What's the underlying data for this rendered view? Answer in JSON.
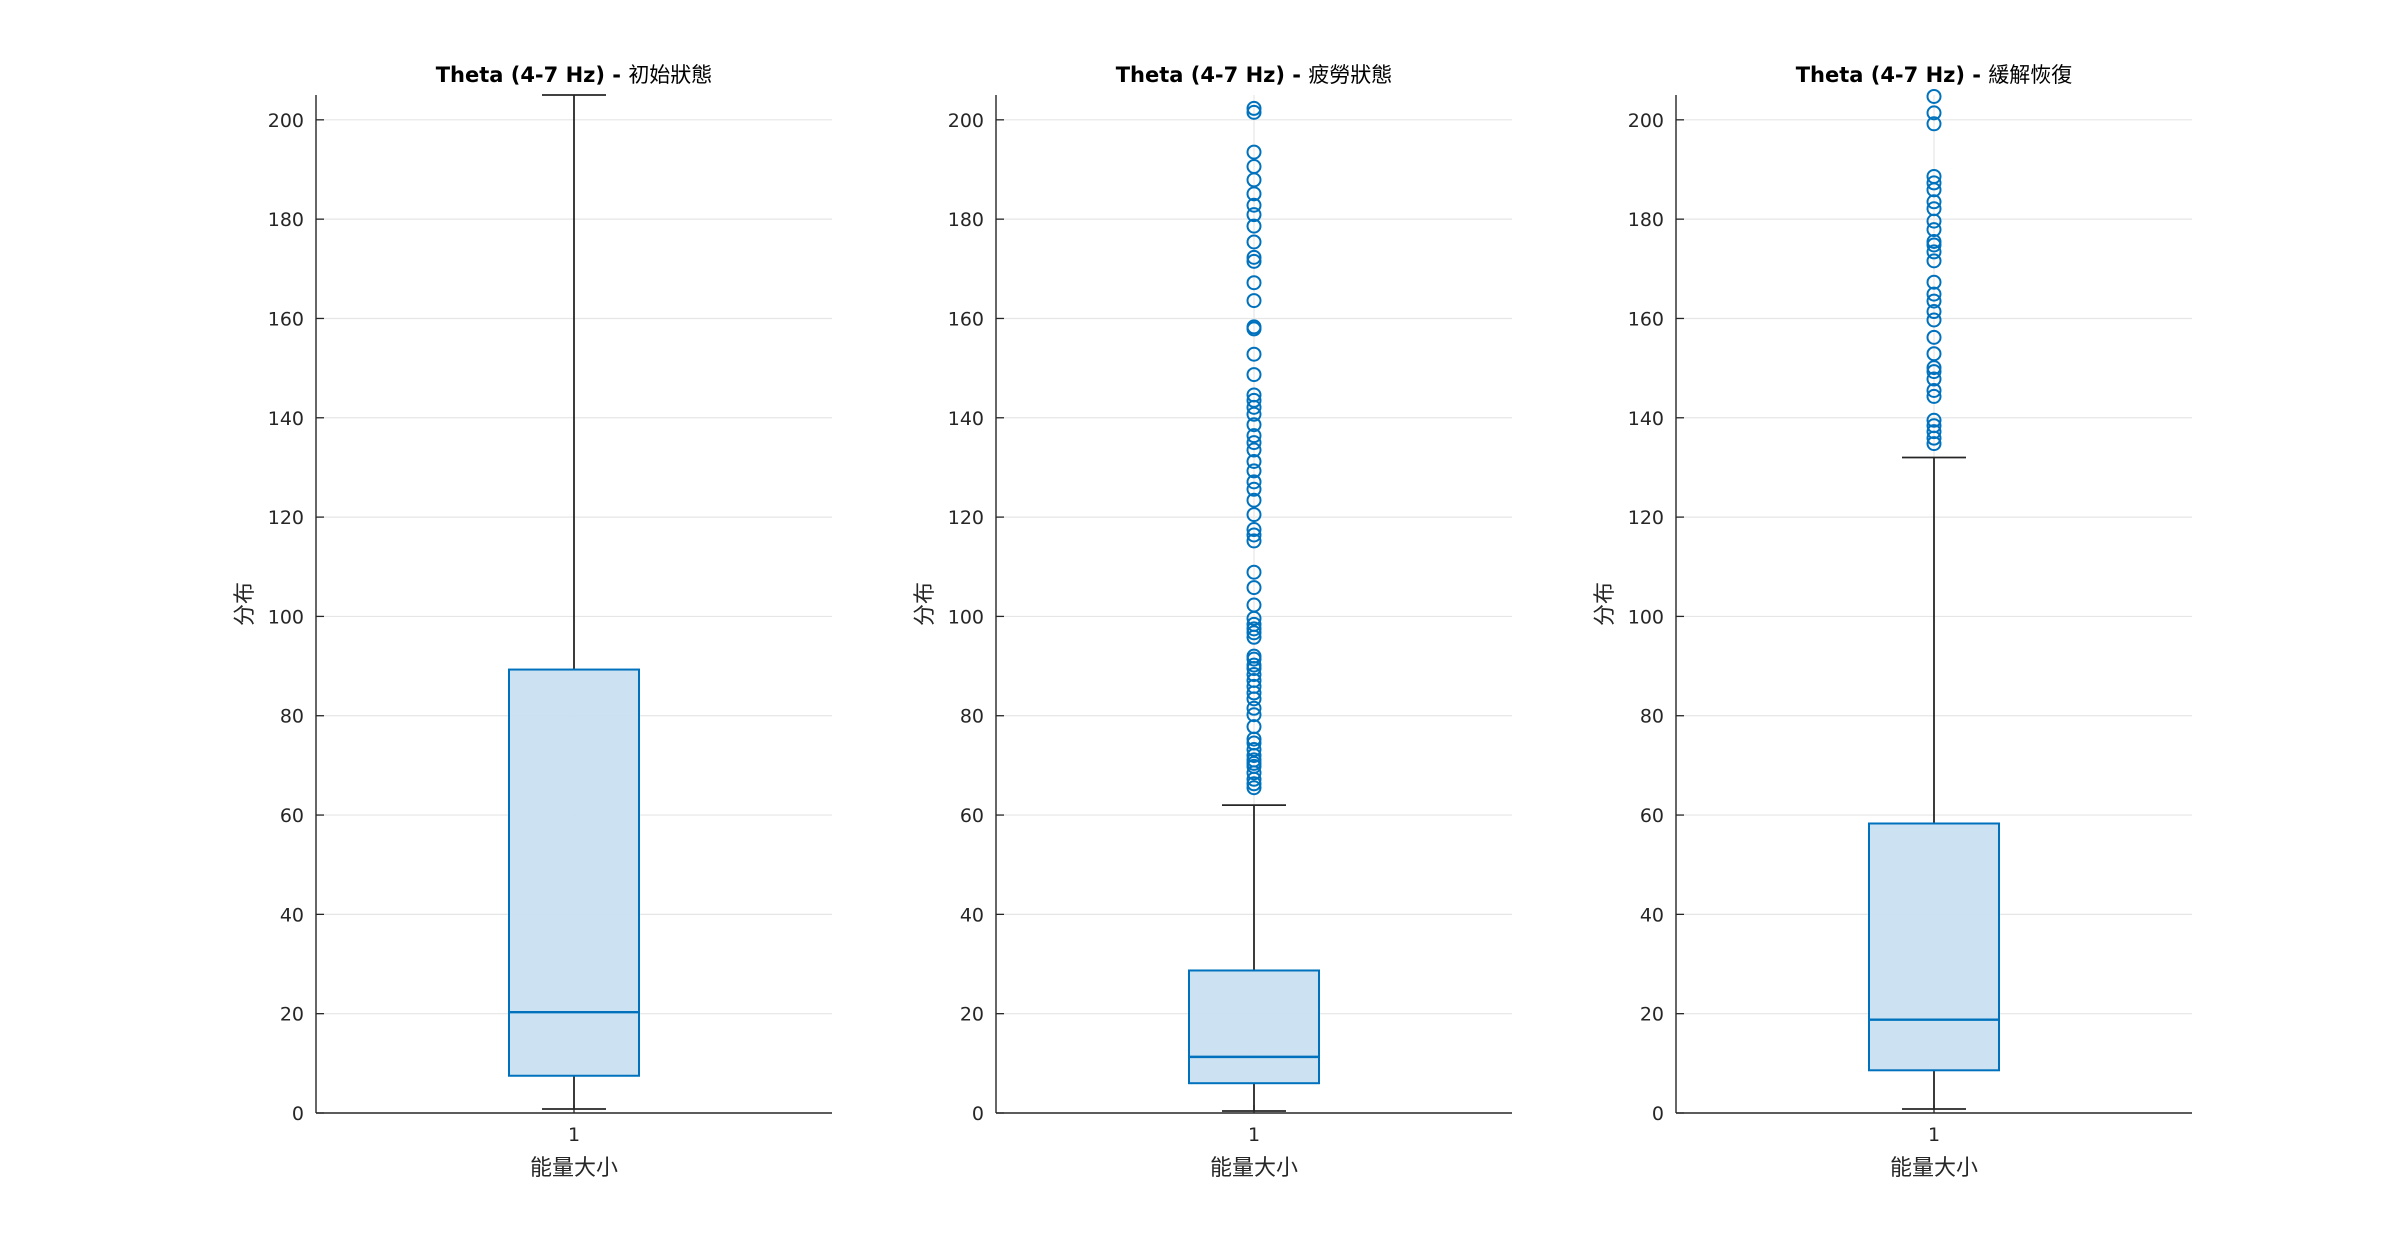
{
  "figure": {
    "background": "#ffffff",
    "box_color": "#0072BD",
    "box_fill": "#c9e0f1",
    "axis_color": "#262626",
    "grid_color": "#e6e6e6",
    "whisker_color": "#262626"
  },
  "chart_data": [
    {
      "type": "box",
      "title_bold": "Theta (4-7 Hz) - ",
      "title_rest": "初始狀態",
      "xlabel": "能量大小",
      "ylabel": "分布",
      "xtick": "1",
      "yticks": [
        0,
        20,
        40,
        60,
        80,
        100,
        120,
        140,
        160,
        180,
        200
      ],
      "ylim": [
        0,
        205
      ],
      "grid": true,
      "box": {
        "q1": 7.5,
        "median": 20.3,
        "q3": 89.3,
        "whisker_low": 0.8,
        "whisker_high": 205
      },
      "outliers": []
    },
    {
      "type": "box",
      "title_bold": "Theta (4-7 Hz) - ",
      "title_rest": "疲勞狀態",
      "xlabel": "能量大小",
      "ylabel": "分布",
      "xtick": "1",
      "yticks": [
        0,
        20,
        40,
        60,
        80,
        100,
        120,
        140,
        160,
        180,
        200
      ],
      "ylim": [
        0,
        205
      ],
      "grid": true,
      "box": {
        "q1": 6.0,
        "median": 11.3,
        "q3": 28.7,
        "whisker_low": 0.4,
        "whisker_high": 62.0
      },
      "outliers": [
        65.5,
        66.3,
        67.2,
        68.5,
        69.8,
        70.4,
        71.1,
        72.0,
        73.2,
        74.5,
        75.3,
        77.8,
        80.2,
        81.5,
        83.4,
        84.6,
        85.9,
        87.1,
        88.3,
        89.5,
        90.2,
        91.4,
        92.0,
        95.8,
        96.7,
        97.5,
        98.4,
        99.6,
        102.3,
        105.8,
        108.9,
        115.2,
        116.4,
        117.5,
        120.5,
        123.4,
        125.6,
        127.1,
        129.3,
        131.2,
        133.5,
        135.0,
        136.4,
        138.6,
        140.7,
        142.1,
        143.5,
        144.6,
        148.7,
        152.8,
        157.9,
        158.3,
        163.6,
        167.2,
        171.5,
        172.3,
        175.4,
        178.6,
        180.9,
        182.8,
        185.1,
        187.9,
        190.6,
        193.5,
        201.5,
        202.3
      ]
    },
    {
      "type": "box",
      "title_bold": "Theta (4-7 Hz) - ",
      "title_rest": "緩解恢復",
      "xlabel": "能量大小",
      "ylabel": "分布",
      "xtick": "1",
      "yticks": [
        0,
        20,
        40,
        60,
        80,
        100,
        120,
        140,
        160,
        180,
        200
      ],
      "ylim": [
        0,
        205
      ],
      "grid": true,
      "box": {
        "q1": 8.6,
        "median": 18.8,
        "q3": 58.3,
        "whisker_low": 0.8,
        "whisker_high": 132.0
      },
      "outliers": [
        134.8,
        135.9,
        137.2,
        138.4,
        139.5,
        144.3,
        145.5,
        147.8,
        149.3,
        150.1,
        152.9,
        156.2,
        159.7,
        161.4,
        163.5,
        164.9,
        167.3,
        171.6,
        173.4,
        174.8,
        175.5,
        177.9,
        179.6,
        182.1,
        183.5,
        185.9,
        187.3,
        188.6,
        199.2,
        201.4,
        204.7
      ]
    }
  ]
}
